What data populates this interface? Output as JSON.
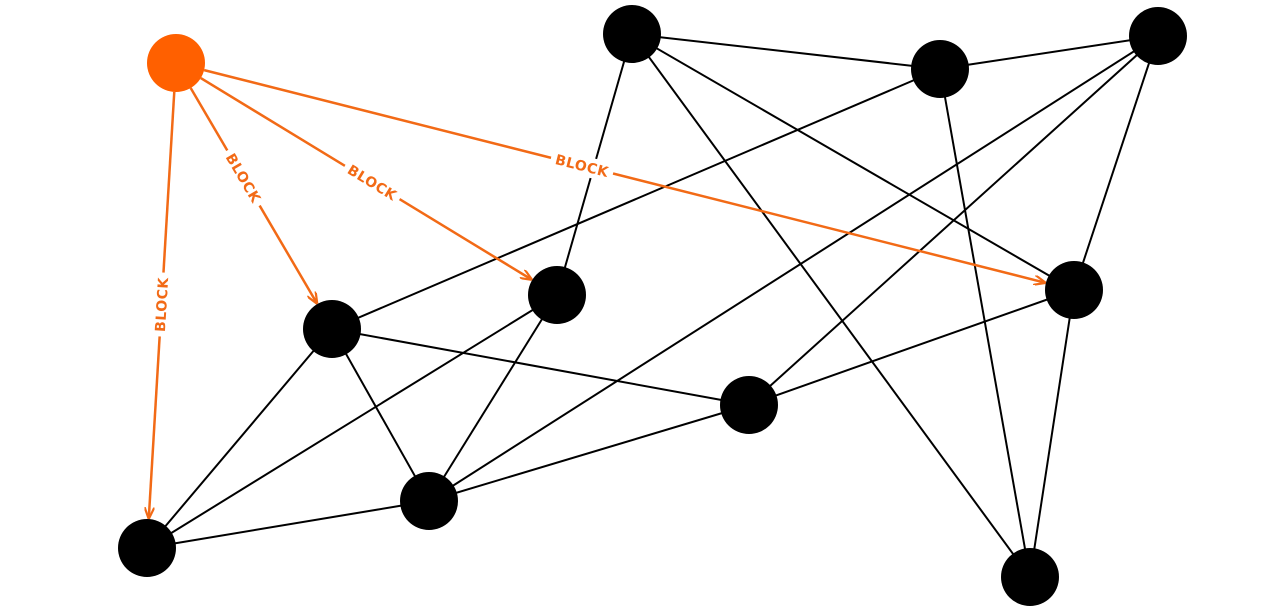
{
  "diagram": {
    "title": "",
    "colors": {
      "source": "#ff6000",
      "block": "#f26a16",
      "node": "#000000",
      "edge": "#000000",
      "background": "#ffffff"
    },
    "source_node": "s",
    "nodes": [
      "s",
      "n1",
      "n2",
      "n3",
      "n4",
      "n5",
      "n6",
      "n7",
      "n8",
      "n9",
      "n10",
      "n11"
    ],
    "edges": [
      [
        "n1",
        "n2"
      ],
      [
        "n1",
        "n4"
      ],
      [
        "n1",
        "n9"
      ],
      [
        "n1",
        "n7"
      ],
      [
        "n2",
        "n3"
      ],
      [
        "n2",
        "n5"
      ],
      [
        "n2",
        "n11"
      ],
      [
        "n3",
        "n9"
      ],
      [
        "n3",
        "n6"
      ],
      [
        "n3",
        "n7"
      ],
      [
        "n4",
        "n5"
      ],
      [
        "n4",
        "n6"
      ],
      [
        "n5",
        "n6"
      ],
      [
        "n5",
        "n10"
      ],
      [
        "n5",
        "n7"
      ],
      [
        "n6",
        "n8"
      ],
      [
        "n7",
        "n10"
      ],
      [
        "n8",
        "n9"
      ],
      [
        "n9",
        "n10"
      ],
      [
        "n9",
        "n11"
      ],
      [
        "n10",
        "n11"
      ]
    ],
    "block_edges": [
      {
        "from": "s",
        "to": "n8",
        "label": "BLOCK"
      },
      {
        "from": "s",
        "to": "n5",
        "label": "BLOCK"
      },
      {
        "from": "s",
        "to": "n4",
        "label": "BLOCK"
      },
      {
        "from": "s",
        "to": "n10",
        "label": "BLOCK"
      }
    ]
  }
}
